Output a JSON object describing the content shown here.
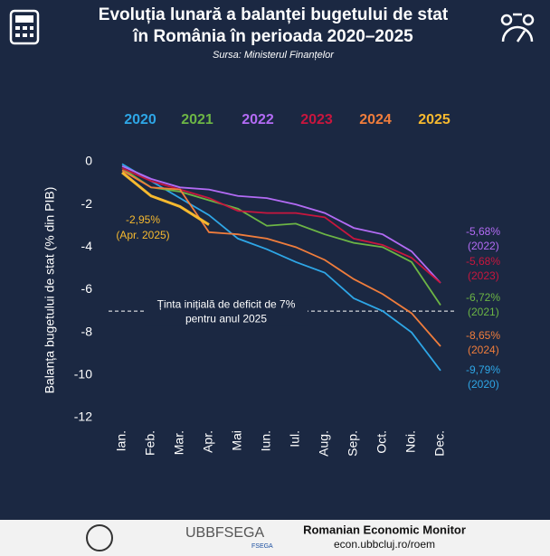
{
  "chart_data": {
    "type": "line",
    "title": [
      "Evoluția lunară a balanței bugetului de stat",
      "în România în perioada 2020–2025"
    ],
    "subtitle": "Sursa: Ministerul Finanțelor",
    "y_label": "Balanța bugetului de stat (% din PIB)",
    "categories": [
      "Ian.",
      "Feb.",
      "Mar.",
      "Apr.",
      "Mai",
      "Iun.",
      "Iul.",
      "Aug.",
      "Sep.",
      "Oct.",
      "Noi.",
      "Dec."
    ],
    "ylim": [
      -12,
      0
    ],
    "yticks": [
      0,
      -2,
      -4,
      -6,
      -8,
      -10,
      -12
    ],
    "series": [
      {
        "name": "2020",
        "color": "#2ea6e6",
        "values": [
          -0.1,
          -0.9,
          -1.7,
          -2.5,
          -3.6,
          -4.1,
          -4.7,
          -5.2,
          -6.4,
          -7.0,
          -8.0,
          -9.79
        ],
        "end_label": "-9,79%",
        "end_note": "(2020)"
      },
      {
        "name": "2021",
        "color": "#6cb545",
        "values": [
          -0.3,
          -1.2,
          -1.4,
          -1.8,
          -2.2,
          -3.0,
          -2.9,
          -3.4,
          -3.8,
          -4.0,
          -4.7,
          -6.72
        ],
        "end_label": "-6,72%",
        "end_note": "(2021)"
      },
      {
        "name": "2022",
        "color": "#b36bf5",
        "values": [
          -0.2,
          -0.8,
          -1.2,
          -1.3,
          -1.6,
          -1.7,
          -2.0,
          -2.4,
          -3.1,
          -3.4,
          -4.2,
          -5.68
        ],
        "end_label": "-5,68%",
        "end_note": "(2022)"
      },
      {
        "name": "2023",
        "color": "#c8163e",
        "values": [
          -0.3,
          -0.9,
          -1.3,
          -1.7,
          -2.3,
          -2.4,
          -2.4,
          -2.6,
          -3.6,
          -3.9,
          -4.5,
          -5.68
        ],
        "end_label": "-5,68%",
        "end_note": "(2023)"
      },
      {
        "name": "2024",
        "color": "#f07d3c",
        "values": [
          -0.4,
          -1.2,
          -1.3,
          -3.3,
          -3.4,
          -3.6,
          -4.0,
          -4.6,
          -5.5,
          -6.2,
          -7.1,
          -8.65
        ],
        "end_label": "-8,65%",
        "end_note": "(2024)"
      },
      {
        "name": "2025",
        "color": "#f6b92f",
        "values": [
          -0.5,
          -1.6,
          -2.1,
          -2.95,
          null,
          null,
          null,
          null,
          null,
          null,
          null,
          null
        ],
        "end_label": "-2,95%",
        "end_note": "(Apr. 2025)"
      }
    ],
    "reference": {
      "value": -7,
      "label": [
        "Ținta inițială de deficit de 7%",
        "pentru anul 2025"
      ]
    }
  },
  "footer": {
    "logo": "UBBFSEGA",
    "sublogo": "FSEGA",
    "title": "Romanian Economic Monitor",
    "url": "econ.ubbcluj.ro/roem"
  }
}
